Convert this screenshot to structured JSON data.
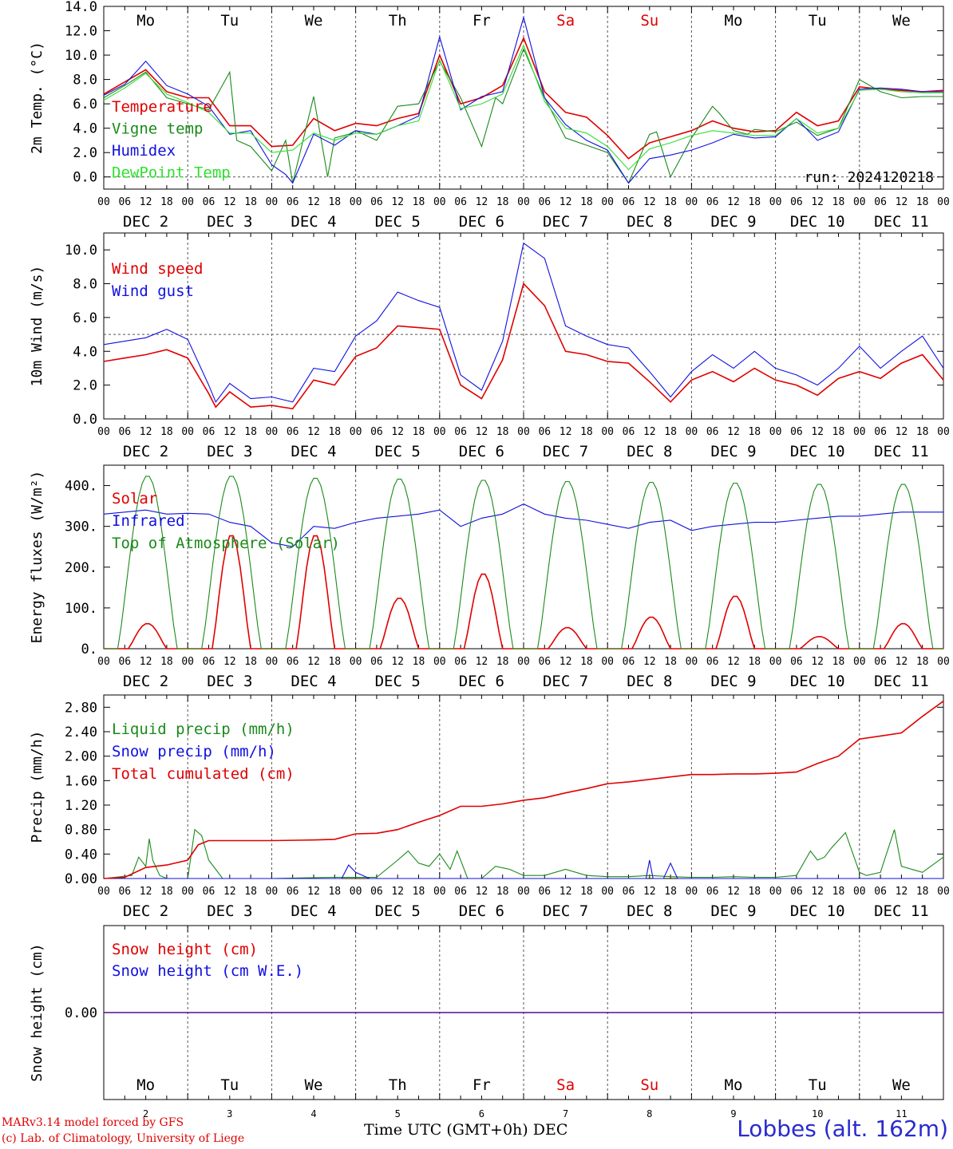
{
  "colors": {
    "red": "#e00000",
    "green": "#1a8a1a",
    "blue": "#1010e0",
    "lightgreen": "#30e030",
    "grid": "#555555"
  },
  "x_ticks": [
    "00",
    "06",
    "12",
    "18"
  ],
  "x_end_tick": "00",
  "days": [
    {
      "abbr": "Mo",
      "date": "DEC  2",
      "weekend": false,
      "num": "2"
    },
    {
      "abbr": "Tu",
      "date": "DEC  3",
      "weekend": false,
      "num": "3"
    },
    {
      "abbr": "We",
      "date": "DEC  4",
      "weekend": false,
      "num": "4"
    },
    {
      "abbr": "Th",
      "date": "DEC  5",
      "weekend": false,
      "num": "5"
    },
    {
      "abbr": "Fr",
      "date": "DEC  6",
      "weekend": false,
      "num": "6"
    },
    {
      "abbr": "Sa",
      "date": "DEC  7",
      "weekend": true,
      "num": "7"
    },
    {
      "abbr": "Su",
      "date": "DEC  8",
      "weekend": true,
      "num": "8"
    },
    {
      "abbr": "Mo",
      "date": "DEC  9",
      "weekend": false,
      "num": "9"
    },
    {
      "abbr": "Tu",
      "date": "DEC 10",
      "weekend": false,
      "num": "10"
    },
    {
      "abbr": "We",
      "date": "DEC 11",
      "weekend": false,
      "num": "11"
    }
  ],
  "chart_data": [
    {
      "type": "line",
      "ylabel": "2m Temp. (°C)",
      "ylim": [
        -1,
        14
      ],
      "yticks": [
        0,
        2,
        4,
        6,
        8,
        10,
        12,
        14
      ],
      "ytick_labels": [
        "0.0",
        "2.0",
        "4.0",
        "6.0",
        "8.0",
        "10.0",
        "12.0",
        "14.0"
      ],
      "ref_line": 0,
      "annotation": "run: 2024120218",
      "series": [
        {
          "name": "Temperature",
          "color": "red",
          "x": [
            0,
            6,
            12,
            18,
            24,
            30,
            36,
            42,
            48,
            54,
            60,
            66,
            72,
            78,
            84,
            90,
            96,
            102,
            108,
            114,
            120,
            126,
            132,
            138,
            144,
            150,
            156,
            162,
            168,
            174,
            180,
            186,
            192,
            198,
            204,
            210,
            216,
            222,
            228,
            234,
            240
          ],
          "y": [
            6.8,
            7.8,
            8.8,
            7.0,
            6.5,
            6.5,
            4.2,
            4.2,
            2.5,
            2.6,
            4.8,
            3.8,
            4.4,
            4.2,
            4.8,
            5.2,
            10.0,
            6.0,
            6.5,
            7.5,
            11.4,
            7.0,
            5.3,
            4.9,
            3.4,
            1.5,
            2.8,
            3.3,
            3.8,
            4.6,
            4.0,
            3.7,
            3.8,
            5.3,
            4.2,
            4.6,
            7.4,
            7.2,
            7.1,
            7.0,
            7.1
          ]
        },
        {
          "name": "Vigne temp",
          "color": "green",
          "x": [
            0,
            6,
            12,
            18,
            24,
            30,
            36,
            38,
            42,
            48,
            52,
            54,
            60,
            64,
            66,
            70,
            72,
            78,
            84,
            90,
            96,
            102,
            108,
            112,
            114,
            120,
            126,
            132,
            138,
            144,
            150,
            156,
            158,
            162,
            168,
            174,
            176,
            180,
            184,
            186,
            192,
            198,
            204,
            210,
            216,
            222,
            228,
            234,
            240
          ],
          "y": [
            6.5,
            7.5,
            8.6,
            6.5,
            6.0,
            5.5,
            8.6,
            3.0,
            2.5,
            0.5,
            3.0,
            -0.5,
            6.6,
            0.0,
            3.2,
            3.5,
            3.8,
            3.0,
            5.8,
            6.0,
            9.5,
            6.5,
            2.5,
            6.5,
            6.0,
            10.5,
            6.5,
            3.2,
            2.6,
            2.0,
            -0.5,
            3.5,
            3.7,
            0.0,
            3.2,
            5.8,
            5.2,
            3.8,
            3.5,
            3.9,
            3.7,
            4.5,
            3.4,
            4.0,
            8.0,
            7.0,
            6.5,
            6.6,
            6.6
          ]
        },
        {
          "name": "Humidex",
          "color": "blue",
          "x": [
            0,
            6,
            12,
            18,
            24,
            30,
            36,
            42,
            48,
            52,
            54,
            60,
            66,
            72,
            78,
            84,
            90,
            96,
            102,
            108,
            114,
            120,
            126,
            132,
            138,
            144,
            150,
            156,
            162,
            168,
            174,
            180,
            186,
            192,
            198,
            204,
            210,
            216,
            222,
            228,
            234,
            240
          ],
          "y": [
            6.7,
            7.6,
            9.5,
            7.5,
            6.8,
            5.8,
            3.5,
            3.8,
            1.0,
            0.2,
            -0.5,
            3.5,
            2.6,
            3.8,
            3.5,
            4.2,
            5.0,
            11.5,
            5.5,
            6.6,
            7.0,
            13.1,
            6.5,
            4.3,
            3.0,
            2.2,
            -0.5,
            1.5,
            1.8,
            2.2,
            2.8,
            3.5,
            3.2,
            3.3,
            4.8,
            3.0,
            3.7,
            7.2,
            7.3,
            7.2,
            7.0,
            7.0
          ]
        },
        {
          "name": "DewPoint Temp",
          "color": "lightgreen",
          "x": [
            0,
            6,
            12,
            18,
            24,
            30,
            36,
            42,
            48,
            54,
            60,
            66,
            72,
            78,
            84,
            90,
            96,
            102,
            108,
            114,
            120,
            126,
            132,
            138,
            144,
            150,
            156,
            162,
            168,
            174,
            180,
            186,
            192,
            198,
            204,
            210,
            216,
            222,
            228,
            234,
            240
          ],
          "y": [
            6.3,
            7.3,
            8.5,
            6.8,
            6.1,
            5.3,
            3.6,
            3.6,
            2.0,
            2.2,
            3.6,
            3.0,
            3.6,
            3.5,
            4.2,
            4.6,
            9.6,
            5.6,
            6.0,
            6.8,
            10.8,
            6.2,
            4.0,
            3.6,
            2.5,
            0.6,
            2.3,
            2.8,
            3.4,
            3.8,
            3.6,
            3.4,
            3.4,
            4.8,
            3.6,
            4.0,
            7.1,
            7.2,
            7.0,
            6.9,
            6.9
          ]
        }
      ]
    },
    {
      "type": "line",
      "ylabel": "10m Wind (m/s)",
      "ylim": [
        0,
        11
      ],
      "yticks": [
        0,
        2,
        4,
        6,
        8,
        10
      ],
      "ytick_labels": [
        "0.0",
        "2.0",
        "4.0",
        "6.0",
        "8.0",
        "10.0"
      ],
      "ref_line": 5,
      "annotation": "",
      "series": [
        {
          "name": "Wind speed",
          "color": "red",
          "x": [
            0,
            6,
            12,
            18,
            24,
            30,
            32,
            36,
            42,
            48,
            54,
            60,
            66,
            72,
            78,
            84,
            90,
            96,
            102,
            108,
            114,
            120,
            126,
            132,
            138,
            144,
            150,
            156,
            162,
            168,
            174,
            180,
            186,
            192,
            198,
            204,
            210,
            216,
            222,
            228,
            234,
            240
          ],
          "y": [
            3.4,
            3.6,
            3.8,
            4.1,
            3.6,
            1.5,
            0.7,
            1.6,
            0.7,
            0.8,
            0.6,
            2.3,
            2.0,
            3.7,
            4.2,
            5.5,
            5.4,
            5.3,
            2.0,
            1.2,
            3.5,
            8.0,
            6.7,
            4.0,
            3.8,
            3.4,
            3.3,
            2.2,
            1.0,
            2.3,
            2.8,
            2.2,
            3.0,
            2.3,
            2.0,
            1.4,
            2.4,
            2.8,
            2.4,
            3.3,
            3.8,
            2.3
          ]
        },
        {
          "name": "Wind gust",
          "color": "blue",
          "x": [
            0,
            6,
            12,
            18,
            24,
            30,
            32,
            36,
            42,
            48,
            54,
            60,
            66,
            72,
            78,
            84,
            90,
            96,
            102,
            108,
            114,
            120,
            126,
            132,
            138,
            144,
            150,
            156,
            162,
            168,
            174,
            180,
            186,
            192,
            198,
            204,
            210,
            216,
            222,
            228,
            234,
            240
          ],
          "y": [
            4.4,
            4.6,
            4.8,
            5.3,
            4.7,
            2.0,
            1.0,
            2.1,
            1.2,
            1.3,
            1.0,
            3.0,
            2.8,
            4.9,
            5.8,
            7.5,
            7.0,
            6.6,
            2.6,
            1.7,
            4.6,
            10.4,
            9.5,
            5.5,
            4.9,
            4.4,
            4.2,
            2.8,
            1.3,
            2.8,
            3.8,
            3.0,
            4.0,
            3.0,
            2.6,
            2.0,
            3.0,
            4.3,
            3.0,
            4.0,
            4.9,
            3.0
          ]
        }
      ]
    },
    {
      "type": "line",
      "ylabel": "Energy fluxes (W/m²)",
      "ylim": [
        0,
        450
      ],
      "yticks": [
        0,
        100,
        200,
        300,
        400
      ],
      "ytick_labels": [
        "0.",
        "100.",
        "200.",
        "300.",
        "400."
      ],
      "ref_line": null,
      "annotation": "",
      "series": [
        {
          "name": "Solar",
          "color": "red",
          "peaks": [
            62,
            280,
            280,
            125,
            185,
            52,
            78,
            130,
            30,
            62
          ]
        },
        {
          "name": "Infrared",
          "color": "blue",
          "x": [
            0,
            6,
            12,
            18,
            24,
            30,
            36,
            42,
            48,
            54,
            60,
            66,
            72,
            78,
            84,
            90,
            96,
            102,
            108,
            114,
            120,
            126,
            132,
            138,
            144,
            150,
            156,
            162,
            168,
            174,
            180,
            186,
            192,
            198,
            204,
            210,
            216,
            222,
            228,
            234,
            240
          ],
          "y": [
            330,
            335,
            340,
            330,
            332,
            330,
            310,
            300,
            260,
            250,
            300,
            295,
            310,
            320,
            325,
            330,
            340,
            300,
            320,
            330,
            355,
            330,
            320,
            315,
            305,
            295,
            310,
            315,
            290,
            300,
            305,
            310,
            310,
            315,
            320,
            325,
            325,
            330,
            335,
            335,
            335
          ]
        },
        {
          "name": "Top of Atmosphere (Solar)",
          "color": "green",
          "peaks": [
            425,
            425,
            420,
            418,
            415,
            412,
            410,
            408,
            405,
            405
          ]
        }
      ]
    },
    {
      "type": "line",
      "ylabel": "Precip (mm/h)",
      "ylim": [
        0,
        3.0
      ],
      "yticks": [
        0,
        0.4,
        0.8,
        1.2,
        1.6,
        2.0,
        2.4,
        2.8
      ],
      "ytick_labels": [
        "0.00",
        "0.40",
        "0.80",
        "1.20",
        "1.60",
        "2.00",
        "2.40",
        "2.80"
      ],
      "ref_line": null,
      "annotation": "",
      "series": [
        {
          "name": "Liquid precip (mm/h)",
          "color": "green",
          "x": [
            0,
            8,
            10,
            12,
            13,
            14,
            16,
            18,
            24,
            26,
            28,
            30,
            32,
            34,
            36,
            42,
            48,
            66,
            72,
            78,
            84,
            87,
            90,
            93,
            96,
            99,
            101,
            104,
            106,
            108,
            112,
            116,
            120,
            126,
            132,
            138,
            144,
            150,
            156,
            162,
            168,
            174,
            180,
            186,
            192,
            198,
            202,
            204,
            206,
            208,
            212,
            216,
            218,
            222,
            226,
            228,
            234,
            240
          ],
          "y": [
            0,
            0.05,
            0.35,
            0.2,
            0.65,
            0.3,
            0.05,
            0,
            0,
            0.8,
            0.7,
            0.3,
            0.15,
            0,
            0,
            0,
            0,
            0.02,
            0.02,
            0.02,
            0.3,
            0.45,
            0.25,
            0.2,
            0.4,
            0.15,
            0.45,
            0,
            0,
            0,
            0.2,
            0.15,
            0.05,
            0.05,
            0.15,
            0.05,
            0.03,
            0.03,
            0.05,
            0.03,
            0.02,
            0.02,
            0.03,
            0.02,
            0.02,
            0.05,
            0.45,
            0.3,
            0.35,
            0.5,
            0.75,
            0.1,
            0.05,
            0.1,
            0.8,
            0.2,
            0.1,
            0.35
          ]
        },
        {
          "name": "Snow precip (mm/h)",
          "color": "blue",
          "x": [
            0,
            40,
            48,
            68,
            70,
            72,
            76,
            80,
            104,
            108,
            150,
            155,
            156,
            157,
            160,
            162,
            164,
            166,
            170,
            240
          ],
          "y": [
            0,
            0,
            0,
            0,
            0.22,
            0.1,
            0,
            0,
            0,
            0,
            0,
            0,
            0.3,
            0,
            0,
            0.25,
            0,
            0,
            0,
            0
          ]
        },
        {
          "name": "Total cumulated (cm)",
          "color": "red",
          "x": [
            0,
            6,
            12,
            18,
            24,
            27,
            30,
            36,
            48,
            60,
            66,
            72,
            78,
            84,
            90,
            96,
            102,
            108,
            114,
            120,
            126,
            132,
            138,
            144,
            150,
            156,
            162,
            168,
            174,
            180,
            186,
            192,
            198,
            204,
            210,
            216,
            222,
            228,
            234,
            240
          ],
          "y": [
            0,
            0.02,
            0.18,
            0.22,
            0.3,
            0.55,
            0.62,
            0.62,
            0.62,
            0.63,
            0.64,
            0.73,
            0.74,
            0.8,
            0.92,
            1.03,
            1.18,
            1.18,
            1.22,
            1.28,
            1.32,
            1.4,
            1.47,
            1.55,
            1.58,
            1.62,
            1.66,
            1.7,
            1.7,
            1.71,
            1.71,
            1.72,
            1.74,
            1.88,
            2.0,
            2.28,
            2.33,
            2.38,
            2.65,
            2.9
          ]
        }
      ]
    },
    {
      "type": "line",
      "ylabel": "Snow height (cm)",
      "ylim": [
        -1,
        1
      ],
      "yticks": [
        0
      ],
      "ytick_labels": [
        "0.00"
      ],
      "ref_line": null,
      "annotation": "",
      "series": [
        {
          "name": "Snow height (cm)",
          "color": "red",
          "x": [
            0,
            240
          ],
          "y": [
            0,
            0
          ]
        },
        {
          "name": "Snow height (cm W.E.)",
          "color": "blue",
          "x": [
            0,
            240
          ],
          "y": [
            0,
            0
          ]
        }
      ]
    }
  ],
  "footer": {
    "model_line": "MARv3.14 model forced by GFS",
    "lab_line": "(c) Lab. of Climatology, University of Liege",
    "xlabel": "Time UTC (GMT+0h) DEC",
    "station": "Lobbes (alt. 162m)"
  }
}
